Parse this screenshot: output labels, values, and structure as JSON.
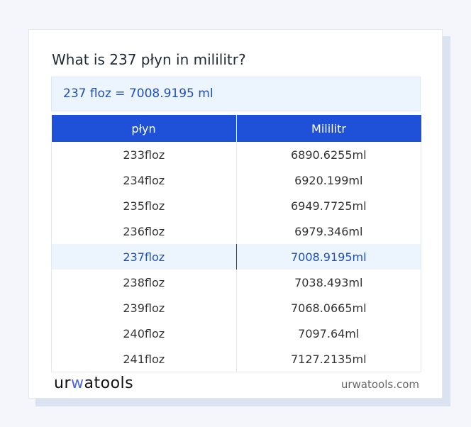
{
  "title": "What is 237 płyn in mililitr?",
  "result": "237 floz = 7008.9195 ml",
  "table": {
    "headers": [
      "płyn",
      "Mililitr"
    ],
    "rows": [
      [
        "233floz",
        "6890.6255ml"
      ],
      [
        "234floz",
        "6920.199ml"
      ],
      [
        "235floz",
        "6949.7725ml"
      ],
      [
        "236floz",
        "6979.346ml"
      ],
      [
        "237floz",
        "7008.9195ml"
      ],
      [
        "238floz",
        "7038.493ml"
      ],
      [
        "239floz",
        "7068.0665ml"
      ],
      [
        "240floz",
        "7097.64ml"
      ],
      [
        "241floz",
        "7127.2135ml"
      ]
    ],
    "highlighted_row": 4
  },
  "footer": {
    "logo": "urwatools",
    "site": "urwatools.com"
  },
  "colors": {
    "accent": "#1e51d8",
    "highlight_bg": "#ecf4fe"
  }
}
